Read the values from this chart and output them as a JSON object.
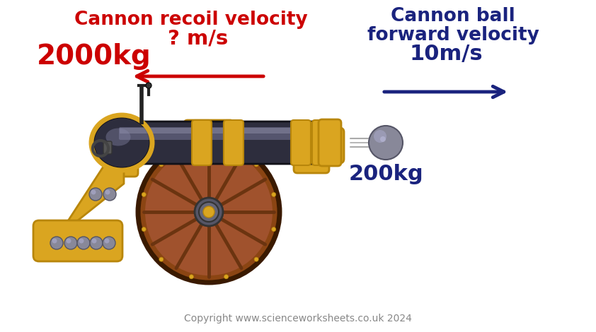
{
  "bg_color": "#ffffff",
  "title_recoil_line1": "Cannon recoil velocity",
  "title_recoil_line2": "? m/s",
  "title_ball_line1": "Cannon ball",
  "title_ball_line2": "forward velocity",
  "ball_velocity": "10m/s",
  "cannon_mass": "2000kg",
  "ball_mass": "200kg",
  "copyright": "Copyright www.scienceworksheets.co.uk 2024",
  "recoil_color": "#cc0000",
  "ball_color": "#1a237e",
  "cannon_mass_color": "#cc0000",
  "ball_mass_color": "#1a237e",
  "copyright_color": "#888888",
  "arrow_recoil_color": "#cc0000",
  "arrow_ball_color": "#1a237e",
  "fig_width": 8.42,
  "fig_height": 4.7,
  "gold": "#DAA520",
  "dark_gold": "#B8860B",
  "barrel_dark": "#2d2d3d",
  "barrel_mid": "#4a4a60",
  "barrel_light": "#8888aa",
  "wheel_brown": "#8B4513",
  "wheel_rim": "#6B3410",
  "silver": "#999999",
  "silver_light": "#bbbbbb"
}
